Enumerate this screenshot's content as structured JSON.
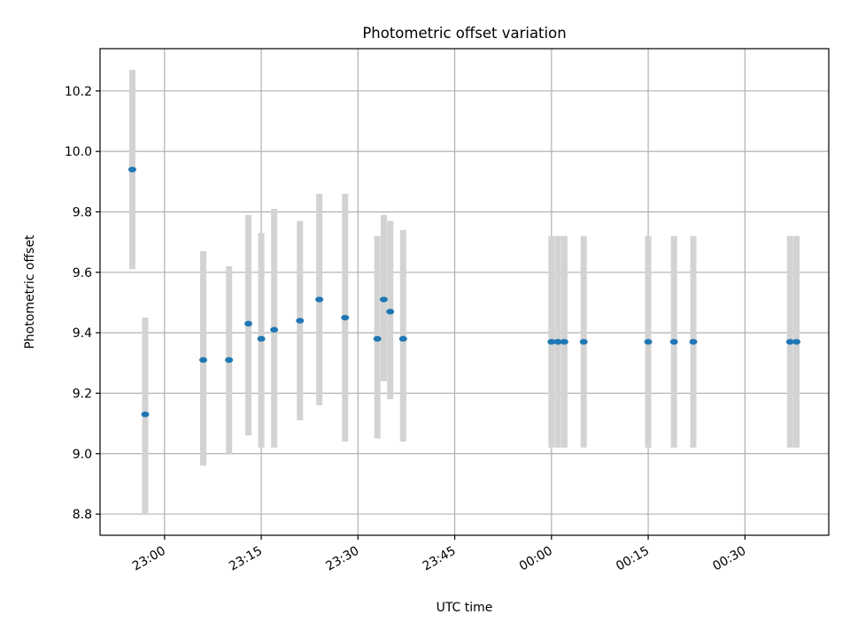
{
  "chart_data": {
    "type": "scatter",
    "title": "Photometric offset variation",
    "xlabel": "UTC time",
    "ylabel": "Photometric offset",
    "grid": true,
    "xlim": [
      "22:50",
      "00:43"
    ],
    "ylim": [
      8.73,
      10.34
    ],
    "x_ticks": [
      "23:00",
      "23:15",
      "23:30",
      "23:45",
      "00:00",
      "00:15",
      "00:30"
    ],
    "y_ticks": [
      "8.8",
      "9.0",
      "9.2",
      "9.4",
      "9.6",
      "9.8",
      "10.0",
      "10.2"
    ],
    "colors": {
      "point": "#1f77b4",
      "errorbar": "#d3d3d3",
      "grid": "#b0b0b0"
    },
    "points": [
      {
        "x": "22:55",
        "y": 9.94,
        "low": 9.61,
        "high": 10.27
      },
      {
        "x": "22:57",
        "y": 9.13,
        "low": 8.8,
        "high": 9.45
      },
      {
        "x": "23:06",
        "y": 9.31,
        "low": 8.96,
        "high": 9.67
      },
      {
        "x": "23:10",
        "y": 9.31,
        "low": 9.0,
        "high": 9.62
      },
      {
        "x": "23:13",
        "y": 9.43,
        "low": 9.06,
        "high": 9.79
      },
      {
        "x": "23:15",
        "y": 9.38,
        "low": 9.02,
        "high": 9.73
      },
      {
        "x": "23:17",
        "y": 9.41,
        "low": 9.02,
        "high": 9.81
      },
      {
        "x": "23:21",
        "y": 9.44,
        "low": 9.11,
        "high": 9.77
      },
      {
        "x": "23:24",
        "y": 9.51,
        "low": 9.16,
        "high": 9.86
      },
      {
        "x": "23:28",
        "y": 9.45,
        "low": 9.04,
        "high": 9.86
      },
      {
        "x": "23:33",
        "y": 9.38,
        "low": 9.05,
        "high": 9.72
      },
      {
        "x": "23:34",
        "y": 9.51,
        "low": 9.24,
        "high": 9.79
      },
      {
        "x": "23:35",
        "y": 9.47,
        "low": 9.18,
        "high": 9.77
      },
      {
        "x": "23:37",
        "y": 9.38,
        "low": 9.04,
        "high": 9.74
      },
      {
        "x": "00:00",
        "y": 9.37,
        "low": 9.02,
        "high": 9.72
      },
      {
        "x": "00:01",
        "y": 9.37,
        "low": 9.02,
        "high": 9.72
      },
      {
        "x": "00:01",
        "y": 9.37,
        "low": 9.02,
        "high": 9.72
      },
      {
        "x": "00:02",
        "y": 9.37,
        "low": 9.02,
        "high": 9.72
      },
      {
        "x": "00:05",
        "y": 9.37,
        "low": 9.02,
        "high": 9.72
      },
      {
        "x": "00:15",
        "y": 9.37,
        "low": 9.02,
        "high": 9.72
      },
      {
        "x": "00:19",
        "y": 9.37,
        "low": 9.02,
        "high": 9.72
      },
      {
        "x": "00:22",
        "y": 9.37,
        "low": 9.02,
        "high": 9.72
      },
      {
        "x": "00:37",
        "y": 9.37,
        "low": 9.02,
        "high": 9.72
      },
      {
        "x": "00:38",
        "y": 9.37,
        "low": 9.02,
        "high": 9.72
      }
    ]
  }
}
